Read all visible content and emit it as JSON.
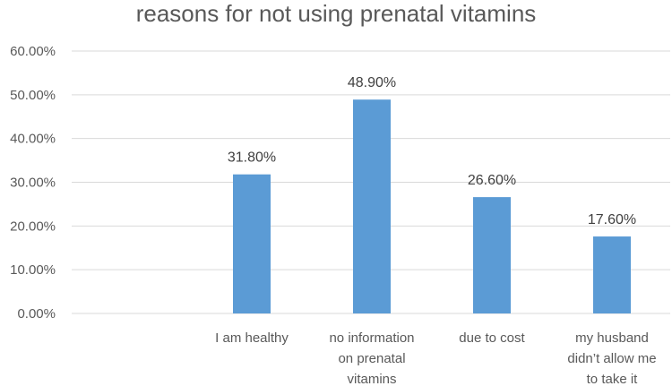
{
  "chart_data": {
    "type": "bar",
    "title": "reasons for not using prenatal vitamins",
    "categories": [
      "",
      "I am healthy",
      "no information on prenatal vitamins",
      "due to cost",
      "my husband didn’t allow me to take it"
    ],
    "category_lines": [
      [],
      [
        "I am healthy"
      ],
      [
        "no information",
        "on prenatal",
        "vitamins"
      ],
      [
        "due to cost"
      ],
      [
        "my husband",
        "didn’t allow me",
        "to take it"
      ]
    ],
    "values": [
      null,
      31.8,
      48.9,
      26.6,
      17.6
    ],
    "value_labels": [
      "",
      "31.80%",
      "48.90%",
      "26.60%",
      "17.60%"
    ],
    "ylim": [
      0,
      60
    ],
    "yticks": [
      0,
      10,
      20,
      30,
      40,
      50,
      60
    ],
    "ytick_labels": [
      "0.00%",
      "10.00%",
      "20.00%",
      "30.00%",
      "40.00%",
      "50.00%",
      "60.00%"
    ],
    "xlabel": "",
    "ylabel": "",
    "grid": true,
    "legend": "none",
    "colors": {
      "bar": "#5b9bd5",
      "grid": "#d9d9d9",
      "text": "#595959"
    }
  }
}
